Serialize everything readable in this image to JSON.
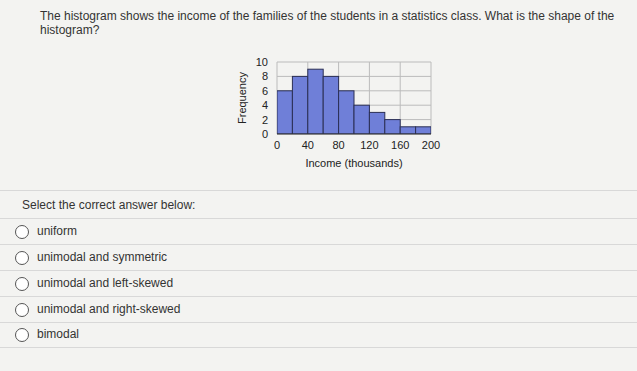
{
  "question": "The histogram shows the income of the families of the students in a statistics class. What is the shape of the histogram?",
  "chart_data": {
    "type": "histogram",
    "x_label": "Income (thousands)",
    "y_label": "Frequency",
    "bins": [
      0,
      20,
      40,
      60,
      80,
      100,
      120,
      140,
      160,
      180,
      200
    ],
    "values": [
      6,
      8,
      9,
      8,
      6,
      4,
      3,
      2,
      1,
      1
    ],
    "color": "#6f7fd8",
    "xlim": [
      0,
      200
    ],
    "xticks": [
      0,
      40,
      80,
      120,
      160,
      200
    ],
    "ylim": [
      0,
      10
    ],
    "yticks": [
      0,
      2,
      4,
      6,
      8,
      10
    ],
    "grid": true
  },
  "prompt": "Select the correct answer below:",
  "options": [
    "uniform",
    "unimodal and symmetric",
    "unimodal and left-skewed",
    "unimodal and right-skewed",
    "bimodal"
  ]
}
